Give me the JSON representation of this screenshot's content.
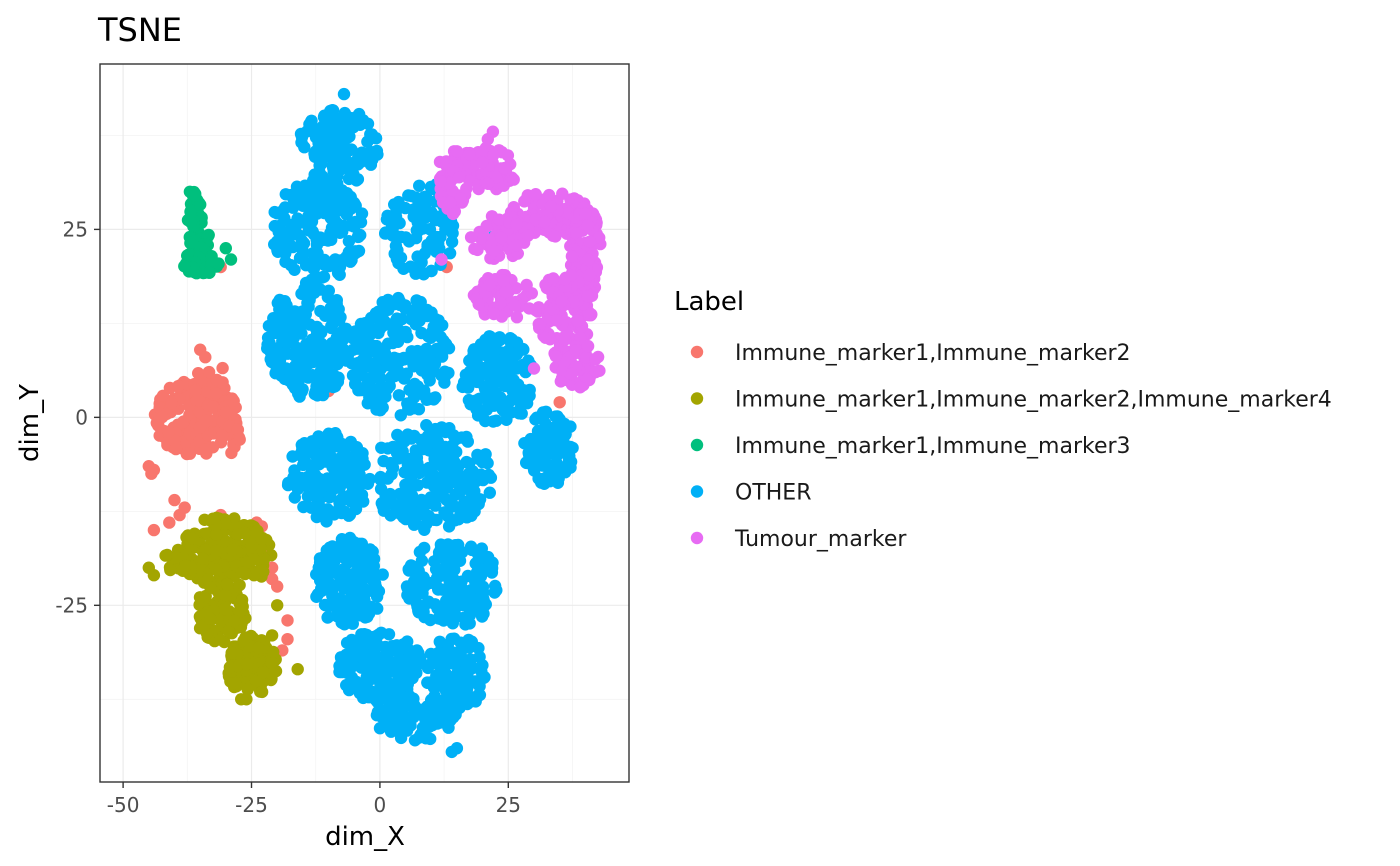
{
  "chart_data": {
    "type": "scatter",
    "title": "TSNE",
    "xlabel": "dim_X",
    "ylabel": "dim_Y",
    "xlim": [
      -54.5,
      48.5
    ],
    "ylim": [
      -48.5,
      47
    ],
    "x_ticks": [
      -50,
      -25,
      0,
      25
    ],
    "y_ticks": [
      -25,
      0,
      25
    ],
    "x_tick_labels": [
      "-50",
      "-25",
      "0",
      "25"
    ],
    "y_tick_labels": [
      "-25",
      "0",
      "25"
    ],
    "grid": true,
    "legend": {
      "title": "Label",
      "position": "right"
    },
    "series": [
      {
        "name": "Immune_marker1,Immune_marker2",
        "color": "#F8766D",
        "clusters": [
          {
            "cx": -36,
            "cy": 0,
            "rx": 8,
            "ry": 5,
            "n": 150
          },
          {
            "cx": -33,
            "cy": 3,
            "rx": 3,
            "ry": 6,
            "n": 40
          },
          {
            "cx": -29,
            "cy": -1,
            "rx": 2,
            "ry": 4,
            "n": 30
          }
        ],
        "points": [
          [
            -35,
            9
          ],
          [
            -34,
            8
          ],
          [
            -44,
            -7
          ],
          [
            -45,
            -6.5
          ],
          [
            -44.5,
            -7.5
          ],
          [
            -40,
            -11
          ],
          [
            -39,
            -13
          ],
          [
            -41,
            -14
          ],
          [
            -44,
            -15
          ],
          [
            -38,
            -12
          ],
          [
            -31,
            -13
          ],
          [
            -24,
            -14
          ],
          [
            -23,
            -14.5
          ],
          [
            -23,
            -18
          ],
          [
            -21,
            -20
          ],
          [
            -21,
            -21.5
          ],
          [
            -20,
            -22.5
          ],
          [
            -18,
            -27
          ],
          [
            -18,
            -29.5
          ],
          [
            -19,
            -31
          ],
          [
            -31,
            20
          ],
          [
            -10,
            3.5
          ],
          [
            13,
            20
          ],
          [
            30,
            -5
          ],
          [
            35,
            2
          ]
        ]
      },
      {
        "name": "Immune_marker1,Immune_marker2,Immune_marker4",
        "color": "#A3A500",
        "clusters": [
          {
            "cx": -30,
            "cy": -18,
            "rx": 9,
            "ry": 5,
            "n": 190
          },
          {
            "cx": -31,
            "cy": -26,
            "rx": 5,
            "ry": 4,
            "n": 90
          },
          {
            "cx": -25,
            "cy": -33,
            "rx": 5,
            "ry": 4,
            "n": 110
          },
          {
            "cx": -40,
            "cy": -19,
            "rx": 2.5,
            "ry": 2,
            "n": 25
          }
        ],
        "points": [
          [
            -44,
            -21
          ],
          [
            -45,
            -20
          ],
          [
            -27,
            -37.5
          ],
          [
            -26,
            -37.5
          ],
          [
            -16,
            -33.5
          ],
          [
            -21,
            -29
          ],
          [
            -20,
            -25
          ]
        ]
      },
      {
        "name": "Immune_marker1,Immune_marker3",
        "color": "#00BF7D",
        "clusters": [
          {
            "cx": -36,
            "cy": 27,
            "rx": 1.5,
            "ry": 3,
            "n": 30
          },
          {
            "cx": -35,
            "cy": 23,
            "rx": 2.5,
            "ry": 2,
            "n": 25
          },
          {
            "cx": -35,
            "cy": 20.5,
            "rx": 4,
            "ry": 1.5,
            "n": 40
          }
        ],
        "points": [
          [
            -30,
            22.5
          ],
          [
            -29,
            21
          ],
          [
            -37,
            30
          ],
          [
            -36,
            29.5
          ]
        ]
      },
      {
        "name": "OTHER",
        "color": "#00B0F6",
        "clusters": [
          {
            "cx": -8,
            "cy": 36,
            "rx": 8,
            "ry": 5,
            "n": 130
          },
          {
            "cx": -12,
            "cy": 25,
            "rx": 9,
            "ry": 7,
            "n": 170
          },
          {
            "cx": 8,
            "cy": 25,
            "rx": 7,
            "ry": 6,
            "n": 90
          },
          {
            "cx": -14,
            "cy": 10,
            "rx": 8,
            "ry": 8,
            "n": 200
          },
          {
            "cx": 4,
            "cy": 8,
            "rx": 10,
            "ry": 8,
            "n": 210
          },
          {
            "cx": 23,
            "cy": 5,
            "rx": 7,
            "ry": 6,
            "n": 120
          },
          {
            "cx": 33,
            "cy": -4,
            "rx": 5,
            "ry": 5,
            "n": 90
          },
          {
            "cx": -10,
            "cy": -8,
            "rx": 8,
            "ry": 6,
            "n": 160
          },
          {
            "cx": 10,
            "cy": -8,
            "rx": 12,
            "ry": 7,
            "n": 230
          },
          {
            "cx": -6,
            "cy": -22,
            "rx": 7,
            "ry": 6,
            "n": 150
          },
          {
            "cx": 14,
            "cy": -22,
            "rx": 9,
            "ry": 6,
            "n": 160
          },
          {
            "cx": 0,
            "cy": -33,
            "rx": 8,
            "ry": 5,
            "n": 150
          },
          {
            "cx": 15,
            "cy": -34,
            "rx": 6,
            "ry": 5,
            "n": 110
          },
          {
            "cx": 7,
            "cy": -40,
            "rx": 8,
            "ry": 3,
            "n": 100
          }
        ],
        "points": [
          [
            -7,
            43
          ],
          [
            15,
            -44
          ],
          [
            14,
            -44.5
          ],
          [
            22,
            24
          ],
          [
            11,
            31
          ],
          [
            28,
            24
          ]
        ]
      },
      {
        "name": "Tumour_marker",
        "color": "#E76BF3",
        "clusters": [
          {
            "cx": 19,
            "cy": 33,
            "rx": 8,
            "ry": 3,
            "n": 80
          },
          {
            "cx": 14,
            "cy": 30,
            "rx": 3,
            "ry": 3,
            "n": 30
          },
          {
            "cx": 33,
            "cy": 27,
            "rx": 8,
            "ry": 3,
            "n": 80
          },
          {
            "cx": 23,
            "cy": 24,
            "rx": 6,
            "ry": 3,
            "n": 60
          },
          {
            "cx": 40,
            "cy": 22,
            "rx": 3,
            "ry": 6,
            "n": 90
          },
          {
            "cx": 24,
            "cy": 16,
            "rx": 6,
            "ry": 3,
            "n": 60
          },
          {
            "cx": 36,
            "cy": 14,
            "rx": 6,
            "ry": 5,
            "n": 100
          },
          {
            "cx": 38,
            "cy": 7,
            "rx": 5,
            "ry": 3,
            "n": 60
          }
        ],
        "points": [
          [
            22,
            38
          ],
          [
            21,
            37
          ],
          [
            39,
            4
          ],
          [
            12,
            21
          ],
          [
            30,
            6.5
          ]
        ]
      }
    ]
  }
}
